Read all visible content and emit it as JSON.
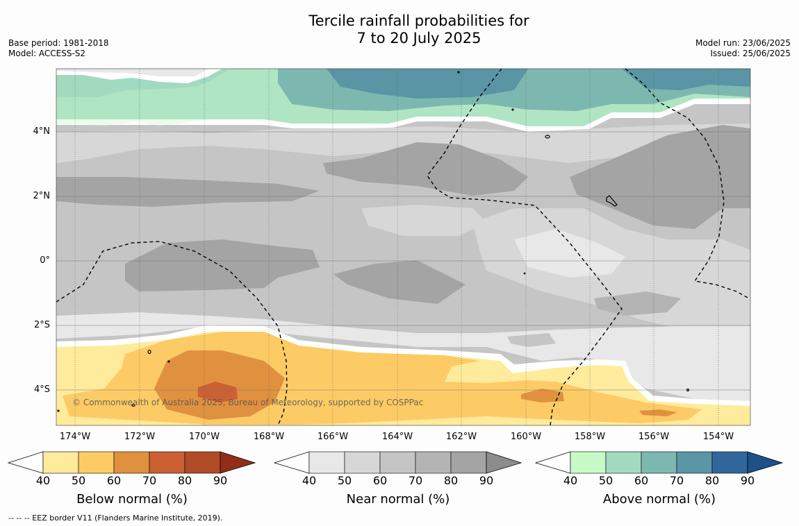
{
  "title": {
    "line1": "Tercile rainfall probabilities for",
    "line2": "7 to 20 July 2025"
  },
  "meta": {
    "base_period": "Base period: 1981-2018",
    "model": "Model: ACCESS-S2",
    "model_run": "Model run: 23/06/2025",
    "issued": "Issued: 25/06/2025"
  },
  "map": {
    "x_ticks": [
      "174°W",
      "172°W",
      "170°W",
      "168°W",
      "166°W",
      "164°W",
      "162°W",
      "160°W",
      "158°W",
      "156°W",
      "154°W"
    ],
    "y_ticks": [
      "4°N",
      "2°N",
      "0°",
      "2°S",
      "4°S"
    ],
    "copyright": "© Commonwealth of Australia 2025, Bureau of Meteorology, supported by COSPPac"
  },
  "colorbars": [
    {
      "title": "Below normal (%)",
      "ticks": [
        "40",
        "50",
        "60",
        "70",
        "80",
        "90"
      ],
      "colors": [
        "#ffffff",
        "#ffeb9c",
        "#fdcb65",
        "#e0913f",
        "#cb6033",
        "#b04c27",
        "#922e18"
      ]
    },
    {
      "title": "Near normal (%)",
      "ticks": [
        "40",
        "50",
        "60",
        "70",
        "80",
        "90"
      ],
      "colors": [
        "#ffffff",
        "#e8e8e8",
        "#d7d7d7",
        "#c5c5c5",
        "#b4b4b4",
        "#a4a4a4",
        "#8c8c8c"
      ]
    },
    {
      "title": "Above normal (%)",
      "ticks": [
        "40",
        "50",
        "60",
        "70",
        "80",
        "90"
      ],
      "colors": [
        "#ffffff",
        "#c8fac8",
        "#a2dac0",
        "#7db8b0",
        "#5a95a5",
        "#31669a",
        "#1e5189"
      ]
    }
  ],
  "footnote": "--  --  -- EEZ border V11 (Flanders Marine Institute, 2019)."
}
